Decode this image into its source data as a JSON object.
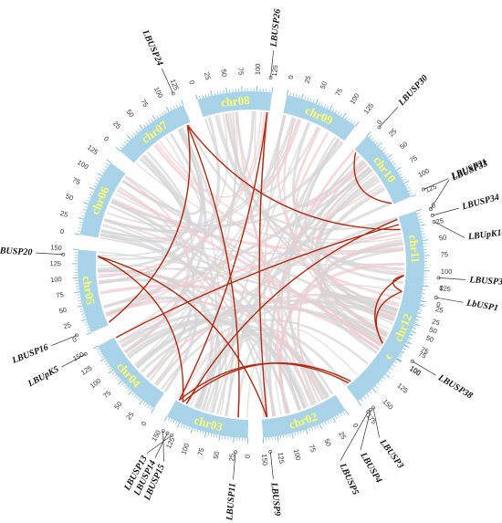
{
  "colors": {
    "chromosome": "#a8d3e8",
    "chromosome_label": "#ffff66",
    "tick": "#6cb6e0",
    "background_links": "#d6d6d6",
    "background_links_pink": "#f3c9cf",
    "highlight_links": "#b22a12",
    "gene_line": "#333333"
  },
  "chromosomes": [
    {
      "id": "chr01",
      "label": "chr01",
      "length": 175,
      "ticks": [
        0,
        25,
        50,
        75,
        100,
        125,
        150,
        175
      ]
    },
    {
      "id": "chr02",
      "label": "chr02",
      "length": 150,
      "ticks": [
        0,
        25,
        50,
        75,
        100,
        125,
        150
      ]
    },
    {
      "id": "chr03",
      "label": "chr03",
      "length": 150,
      "ticks": [
        0,
        25,
        50,
        75,
        100,
        125,
        150
      ]
    },
    {
      "id": "chr04",
      "label": "chr04",
      "length": 150,
      "ticks": [
        0,
        25,
        50,
        75,
        100,
        125,
        150
      ]
    },
    {
      "id": "chr05",
      "label": "chr05",
      "length": 150,
      "ticks": [
        0,
        25,
        50,
        75,
        100,
        125,
        150
      ]
    },
    {
      "id": "chr06",
      "label": "chr06",
      "length": 125,
      "ticks": [
        0,
        25,
        50,
        75,
        100,
        125
      ]
    },
    {
      "id": "chr07",
      "label": "chr07",
      "length": 125,
      "ticks": [
        0,
        25,
        50,
        75,
        100,
        125
      ]
    },
    {
      "id": "chr08",
      "label": "chr08",
      "length": 125,
      "ticks": [
        0,
        25,
        50,
        75,
        100,
        125
      ]
    },
    {
      "id": "chr09",
      "label": "chr09",
      "length": 125,
      "ticks": [
        0,
        25,
        50,
        75,
        100,
        125
      ]
    },
    {
      "id": "chr10",
      "label": "chr10",
      "length": 125,
      "ticks": [
        0,
        25,
        50,
        75,
        100,
        125
      ]
    },
    {
      "id": "chr11",
      "label": "chr11",
      "length": 125,
      "ticks": [
        0,
        25,
        50,
        75,
        100,
        125
      ]
    },
    {
      "id": "chr12",
      "label": "chr12",
      "length": 100,
      "ticks": [
        0,
        25,
        50,
        75,
        100
      ]
    }
  ],
  "genes": [
    {
      "name": "LbUSP1",
      "chr": "chr01",
      "pos": 12
    },
    {
      "name": "LBUSP3",
      "chr": "chr01",
      "pos": 165
    },
    {
      "name": "LBUSP4",
      "chr": "chr01",
      "pos": 169
    },
    {
      "name": "LBUSP5",
      "chr": "chr01",
      "pos": 173
    },
    {
      "name": "LBUSP9",
      "chr": "chr02",
      "pos": 140
    },
    {
      "name": "LBUSP11",
      "chr": "chr03",
      "pos": 20
    },
    {
      "name": "LBUSP13",
      "chr": "chr03",
      "pos": 128
    },
    {
      "name": "LBUSP14",
      "chr": "chr03",
      "pos": 136
    },
    {
      "name": "LBUSP15",
      "chr": "chr03",
      "pos": 144
    },
    {
      "name": "LBUpK5",
      "chr": "chr04",
      "pos": 148
    },
    {
      "name": "LBUSP16",
      "chr": "chr05",
      "pos": 5
    },
    {
      "name": "LBUSP20",
      "chr": "chr05",
      "pos": 140
    },
    {
      "name": "LBUSP24",
      "chr": "chr07",
      "pos": 118
    },
    {
      "name": "LBUSP26",
      "chr": "chr08",
      "pos": 120
    },
    {
      "name": "LBUSP30",
      "chr": "chr10",
      "pos": 5
    },
    {
      "name": "LBUSP31",
      "chr": "chr10",
      "pos": 122
    },
    {
      "name": "LBUSP33",
      "chr": "chr11",
      "pos": 4
    },
    {
      "name": "LBUSP34",
      "chr": "chr11",
      "pos": 14
    },
    {
      "name": "LBUpK14",
      "chr": "chr11",
      "pos": 24
    },
    {
      "name": "LBUSP36",
      "chr": "chr11",
      "pos": 110
    },
    {
      "name": "LBUSP38",
      "chr": "chr12",
      "pos": 90
    }
  ],
  "highlight_links": [
    {
      "a": {
        "chr": "chr10",
        "pos": 5
      },
      "b": {
        "chr": "chr10",
        "pos": 122
      }
    },
    {
      "a": {
        "chr": "chr11",
        "pos": 4
      },
      "b": {
        "chr": "chr03",
        "pos": 128
      }
    },
    {
      "a": {
        "chr": "chr11",
        "pos": 14
      },
      "b": {
        "chr": "chr04",
        "pos": 148
      }
    },
    {
      "a": {
        "chr": "chr11",
        "pos": 24
      },
      "b": {
        "chr": "chr07",
        "pos": 118
      }
    },
    {
      "a": {
        "chr": "chr11",
        "pos": 110
      },
      "b": {
        "chr": "chr12",
        "pos": 90
      }
    },
    {
      "a": {
        "chr": "chr12",
        "pos": 90
      },
      "b": {
        "chr": "chr01",
        "pos": 12
      }
    },
    {
      "a": {
        "chr": "chr11",
        "pos": 110
      },
      "b": {
        "chr": "chr01",
        "pos": 12
      }
    },
    {
      "a": {
        "chr": "chr08",
        "pos": 120
      },
      "b": {
        "chr": "chr02",
        "pos": 140
      }
    },
    {
      "a": {
        "chr": "chr07",
        "pos": 118
      },
      "b": {
        "chr": "chr03",
        "pos": 20
      }
    },
    {
      "a": {
        "chr": "chr07",
        "pos": 118
      },
      "b": {
        "chr": "chr05",
        "pos": 5
      }
    },
    {
      "a": {
        "chr": "chr05",
        "pos": 140
      },
      "b": {
        "chr": "chr02",
        "pos": 140
      }
    },
    {
      "a": {
        "chr": "chr01",
        "pos": 165
      },
      "b": {
        "chr": "chr03",
        "pos": 136
      }
    },
    {
      "a": {
        "chr": "chr01",
        "pos": 169
      },
      "b": {
        "chr": "chr03",
        "pos": 144
      }
    },
    {
      "a": {
        "chr": "chr03",
        "pos": 136
      },
      "b": {
        "chr": "chr05",
        "pos": 140
      }
    },
    {
      "a": {
        "chr": "chr08",
        "pos": 120
      },
      "b": {
        "chr": "chr03",
        "pos": 144
      }
    }
  ]
}
